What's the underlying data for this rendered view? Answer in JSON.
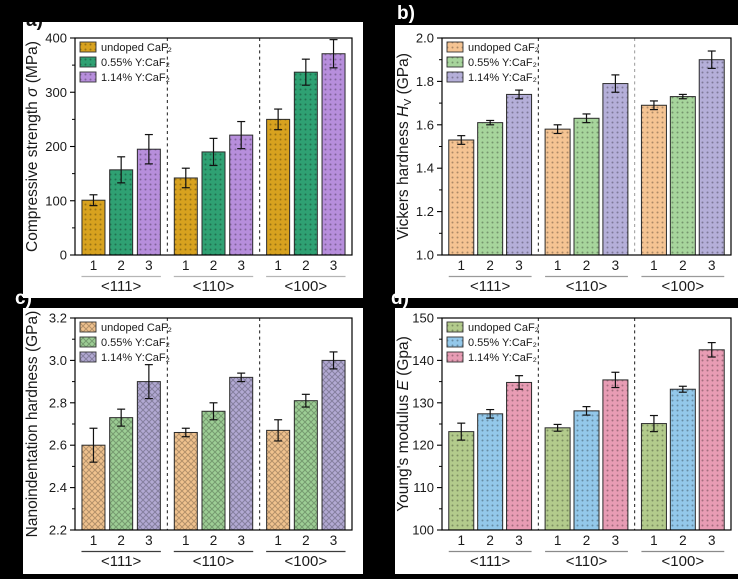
{
  "figure": {
    "background": "#000000",
    "panel_background": "#ffffff",
    "axis_color": "#000000",
    "error_bar_color": "#111111"
  },
  "panel_labels": [
    {
      "text": "a)"
    },
    {
      "text": "b)"
    },
    {
      "text": "c)"
    },
    {
      "text": "d)"
    }
  ],
  "chart_data": [
    {
      "id": "a",
      "type": "bar",
      "ylabel": "Compressive strength σ (MPa)",
      "ylabel_parts": [
        [
          "Compressive strength ",
          "n"
        ],
        [
          "σ",
          "i"
        ],
        [
          " (MPa)",
          "n"
        ]
      ],
      "ylim": [
        0,
        400
      ],
      "yticks": [
        0,
        100,
        200,
        300,
        400
      ],
      "ytick_labels": [
        "0",
        "100",
        "200",
        "300",
        "400"
      ],
      "groups": [
        "<111>",
        "<110>",
        "<100>"
      ],
      "bar_numbers": [
        "1",
        "2",
        "3"
      ],
      "legend": [
        "undoped CaF₂",
        "0.55% Y:CaF₂",
        "1.14% Y:CaF₂"
      ],
      "colors": [
        "#D8A21F",
        "#2FA173",
        "#B78EDC"
      ],
      "hatch": "dots",
      "separator_colors": [
        "#1a1a1a",
        "#1a1a1a"
      ],
      "group_rule_color": "#b5b5b5",
      "series": [
        {
          "name": "undoped CaF₂",
          "values": [
            101,
            142,
            250
          ],
          "errors": [
            10,
            18,
            19
          ]
        },
        {
          "name": "0.55% Y:CaF₂",
          "values": [
            157,
            190,
            337
          ],
          "errors": [
            24,
            25,
            24
          ]
        },
        {
          "name": "1.14% Y:CaF₂",
          "values": [
            195,
            221,
            371
          ],
          "errors": [
            27,
            25,
            26
          ]
        }
      ]
    },
    {
      "id": "b",
      "type": "bar",
      "ylabel": "Vickers hardness H_V (GPa)",
      "ylabel_parts": [
        [
          "Vickers hardness ",
          "n"
        ],
        [
          "H",
          "i"
        ],
        [
          "V",
          "sub"
        ],
        [
          " (GPa)",
          "n"
        ]
      ],
      "ylim": [
        1.0,
        2.0
      ],
      "yticks": [
        1.0,
        1.2,
        1.4,
        1.6,
        1.8,
        2.0
      ],
      "ytick_labels": [
        "1.0",
        "1.2",
        "1.4",
        "1.6",
        "1.8",
        "2.0"
      ],
      "groups": [
        "<111>",
        "<110>",
        "<100>"
      ],
      "bar_numbers": [
        "1",
        "2",
        "3"
      ],
      "legend": [
        "undoped CaF₂",
        "0.55% Y:CaF₂",
        "1.14% Y:CaF₂"
      ],
      "colors": [
        "#F5C493",
        "#A7D59C",
        "#B5AFD9"
      ],
      "hatch": "dots",
      "separator_colors": [
        "#1a1a1a",
        "#999999"
      ],
      "group_rule_color": "#9a9a9a",
      "series": [
        {
          "name": "undoped CaF₂",
          "values": [
            1.53,
            1.58,
            1.69
          ],
          "errors": [
            0.02,
            0.02,
            0.02
          ]
        },
        {
          "name": "0.55% Y:CaF₂",
          "values": [
            1.61,
            1.63,
            1.73
          ],
          "errors": [
            0.01,
            0.02,
            0.01
          ]
        },
        {
          "name": "1.14% Y:CaF₂",
          "values": [
            1.74,
            1.79,
            1.9
          ],
          "errors": [
            0.02,
            0.04,
            0.04
          ]
        }
      ]
    },
    {
      "id": "c",
      "type": "bar",
      "ylabel": "Nanoindentation hardness (GPa)",
      "ylabel_parts": [
        [
          "Nanoindentation hardness (GPa)",
          "n"
        ]
      ],
      "ylim": [
        2.2,
        3.2
      ],
      "yticks": [
        2.2,
        2.4,
        2.6,
        2.8,
        3.0,
        3.2
      ],
      "ytick_labels": [
        "2.2",
        "2.4",
        "2.6",
        "2.8",
        "3.0",
        "3.2"
      ],
      "groups": [
        "<111>",
        "<110>",
        "<100>"
      ],
      "bar_numbers": [
        "1",
        "2",
        "3"
      ],
      "legend": [
        "undoped CaF₂",
        "0.55% Y:CaF₂",
        "1.14% Y:CaF₂"
      ],
      "colors": [
        "#F0C28E",
        "#9DCE95",
        "#B2A9D3"
      ],
      "hatch": "cross",
      "separator_colors": [
        "#1a1a1a",
        "#1a1a1a"
      ],
      "group_rule_color": "#3c3c3c",
      "series": [
        {
          "name": "undoped CaF₂",
          "values": [
            2.6,
            2.66,
            2.67
          ],
          "errors": [
            0.08,
            0.02,
            0.05
          ]
        },
        {
          "name": "0.55% Y:CaF₂",
          "values": [
            2.73,
            2.76,
            2.81
          ],
          "errors": [
            0.04,
            0.04,
            0.03
          ]
        },
        {
          "name": "1.14% Y:CaF₂",
          "values": [
            2.9,
            2.92,
            3.0
          ],
          "errors": [
            0.08,
            0.02,
            0.04
          ]
        }
      ]
    },
    {
      "id": "d",
      "type": "bar",
      "ylabel": "Young's modulus E (Gpa)",
      "ylabel_parts": [
        [
          "Young's modulus ",
          "n"
        ],
        [
          "E",
          "i"
        ],
        [
          " (Gpa)",
          "n"
        ]
      ],
      "ylim": [
        100,
        150
      ],
      "yticks": [
        100,
        110,
        120,
        130,
        140,
        150
      ],
      "ytick_labels": [
        "100",
        "110",
        "120",
        "130",
        "140",
        "150"
      ],
      "groups": [
        "<111>",
        "<110>",
        "<100>"
      ],
      "bar_numbers": [
        "1",
        "2",
        "3"
      ],
      "legend": [
        "undoped CaF₂",
        "0.55% Y:CaF₂",
        "1.14% Y:CaF₂"
      ],
      "colors": [
        "#B3CB8C",
        "#93C8EA",
        "#E89CB4"
      ],
      "hatch": "dots",
      "separator_colors": [
        "#1a1a1a",
        "#1a1a1a"
      ],
      "group_rule_color": "#8a8a8a",
      "series": [
        {
          "name": "undoped CaF₂",
          "values": [
            123.2,
            124.1,
            125.1
          ],
          "errors": [
            2.0,
            0.8,
            1.9
          ]
        },
        {
          "name": "0.55% Y:CaF₂",
          "values": [
            127.4,
            128.1,
            133.2
          ],
          "errors": [
            1.0,
            1.0,
            0.7
          ]
        },
        {
          "name": "1.14% Y:CaF₂",
          "values": [
            134.8,
            135.4,
            142.5
          ],
          "errors": [
            1.6,
            1.8,
            1.7
          ]
        }
      ]
    }
  ]
}
